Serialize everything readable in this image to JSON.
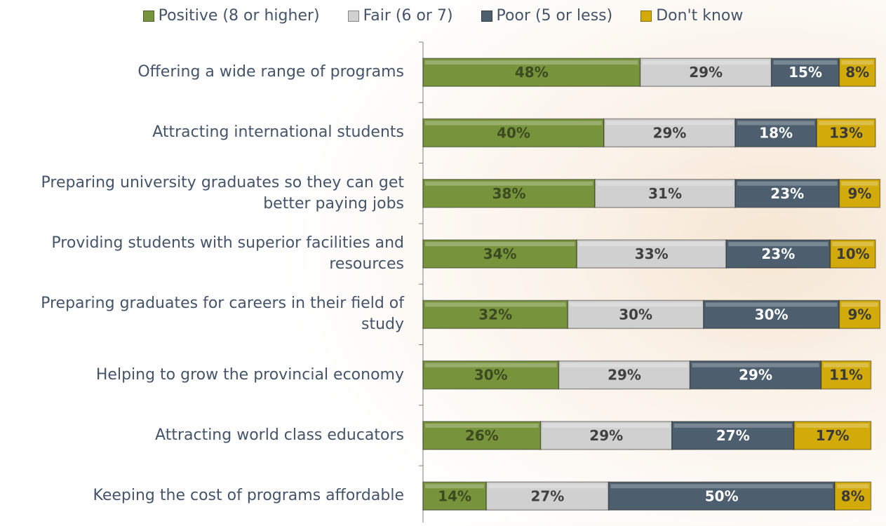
{
  "chart_data": {
    "type": "stacked-bar",
    "categories": [
      "Offering a wide range of programs",
      "Attracting international students",
      "Preparing university graduates so they can get better paying jobs",
      "Providing students with superior facilities and resources",
      "Preparing graduates for careers in their field of study",
      "Helping to grow the provincial economy",
      "Attracting world class educators",
      "Keeping the cost of programs affordable"
    ],
    "series": [
      {
        "name": "Positive (8 or higher)",
        "color": "#77933c",
        "values": [
          48,
          40,
          38,
          34,
          32,
          30,
          26,
          14
        ],
        "value_labels": [
          "48%",
          "40%",
          "38%",
          "34%",
          "32%",
          "30%",
          "26%",
          "14%"
        ]
      },
      {
        "name": "Fair (6 or 7)",
        "color": "#d0d0d0",
        "values": [
          29,
          29,
          31,
          33,
          30,
          29,
          29,
          27
        ],
        "value_labels": [
          "29%",
          "29%",
          "31%",
          "33%",
          "30%",
          "29%",
          "29%",
          "27%"
        ]
      },
      {
        "name": "Poor (5 or less)",
        "color": "#4d5f6e",
        "values": [
          15,
          18,
          23,
          23,
          30,
          29,
          27,
          50
        ],
        "value_labels": [
          "15%",
          "18%",
          "23%",
          "23%",
          "30%",
          "29%",
          "27%",
          "50%"
        ]
      },
      {
        "name": "Don't know",
        "color": "#d2aa0a",
        "values": [
          8,
          13,
          9,
          10,
          9,
          11,
          17,
          8
        ],
        "value_labels": [
          "8%",
          "13%",
          "9%",
          "10%",
          "9%",
          "11%",
          "17%",
          "8%"
        ]
      }
    ]
  }
}
